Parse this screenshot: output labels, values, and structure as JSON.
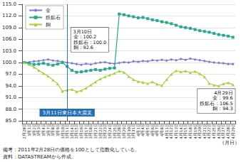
{
  "chart_data": {
    "type": "line",
    "categories": [
      "2月28日",
      "3月1日",
      "3月2日",
      "3月3日",
      "3月4日",
      "3月7日",
      "3月8日",
      "3月9日",
      "3月10日",
      "3月11日",
      "3月14日",
      "3月15日",
      "3月16日",
      "3月17日",
      "3月18日",
      "3月21日",
      "3月22日",
      "3月23日",
      "3月24日",
      "3月25日",
      "3月28日",
      "3月29日",
      "3月30日",
      "3月31日",
      "4月1日",
      "4月4日",
      "4月5日",
      "4月6日",
      "4月7日",
      "4月8日",
      "4月11日",
      "4月12日",
      "4月13日",
      "4月14日",
      "4月15日",
      "4月18日",
      "4月19日",
      "4月20日",
      "4月21日",
      "4月22日",
      "4月25日",
      "4月26日",
      "4月27日",
      "4月28日",
      "4月29日"
    ],
    "series": [
      {
        "name": "金",
        "color": "#7b7bd6",
        "marker": "diamond",
        "line_style": "solid",
        "values": [
          100.0,
          100.1,
          100.3,
          100.4,
          100.6,
          100.8,
          100.5,
          100.4,
          100.2,
          100.0,
          99.8,
          99.6,
          99.4,
          99.7,
          99.5,
          99.8,
          100.0,
          100.1,
          99.8,
          99.7,
          99.9,
          100.1,
          100.0,
          100.3,
          100.2,
          100.4,
          100.3,
          100.6,
          100.5,
          100.7,
          100.5,
          100.8,
          100.6,
          100.9,
          100.7,
          101.0,
          100.8,
          100.6,
          100.4,
          100.2,
          100.0,
          99.9,
          99.8,
          99.6,
          99.6
        ]
      },
      {
        "name": "鉄鉱石",
        "color": "#2aa78f",
        "marker": "rect",
        "line_style": "solid",
        "values": [
          100.0,
          99.8,
          99.5,
          99.6,
          99.8,
          99.5,
          99.3,
          99.6,
          100.0,
          99.0,
          98.0,
          97.5,
          97.6,
          97.8,
          98.0,
          98.2,
          98.0,
          98.3,
          98.5,
          98.6,
          112.5,
          112.3,
          112.0,
          111.8,
          111.5,
          111.6,
          111.3,
          111.0,
          110.8,
          110.5,
          110.3,
          110.0,
          109.6,
          109.2,
          109.0,
          108.8,
          108.5,
          108.2,
          108.0,
          107.8,
          107.5,
          107.2,
          107.0,
          106.8,
          106.5
        ]
      },
      {
        "name": "銅",
        "color": "#a6d13c",
        "marker": "triangle",
        "line_style": "solid",
        "values": [
          100.0,
          99.5,
          98.8,
          98.0,
          97.2,
          96.5,
          95.5,
          94.5,
          92.6,
          92.9,
          93.1,
          92.5,
          92.8,
          93.4,
          94.2,
          95.0,
          95.8,
          96.3,
          96.8,
          97.2,
          97.8,
          97.5,
          96.4,
          95.6,
          95.1,
          94.9,
          94.6,
          95.0,
          94.4,
          94.1,
          95.6,
          97.0,
          97.9,
          97.6,
          97.8,
          97.4,
          97.7,
          97.1,
          96.3,
          94.6,
          94.2,
          94.0,
          94.5,
          94.8,
          94.3
        ]
      }
    ],
    "ylim": [
      85,
      115
    ],
    "yticks": [
      {
        "value": 85,
        "label": "85.0"
      },
      {
        "value": 88,
        "label": "88.0"
      },
      {
        "value": 91,
        "label": "91.0"
      },
      {
        "value": 94,
        "label": "94.0"
      },
      {
        "value": 97,
        "label": "97.0"
      },
      {
        "value": 100,
        "label": "100.0"
      },
      {
        "value": 103,
        "label": "103.0"
      },
      {
        "value": 106,
        "label": "106.0"
      },
      {
        "value": 109,
        "label": "109.0"
      },
      {
        "value": 112,
        "label": "112.0"
      },
      {
        "value": 115,
        "label": "115.0"
      }
    ],
    "xlabel": "（月日）",
    "grid": true,
    "legend": "top-left",
    "events": [
      {
        "x": "3月11日",
        "label": "3月11日東日本大震災"
      }
    ],
    "callouts": [
      {
        "x": "3月10日",
        "lines": [
          "3月10日",
          "金：100.2",
          "鉄鉱石：100.0",
          "銅：92.6"
        ]
      },
      {
        "x": "4月29日",
        "lines": [
          "4月29日",
          "金：99.6",
          "鉄鉱石：106.5",
          "銅：94.3"
        ]
      }
    ],
    "notes": [
      "備考：2011年2月28日の価格を100として指数化している。",
      "資料：DATASTREAMから作成。"
    ]
  }
}
